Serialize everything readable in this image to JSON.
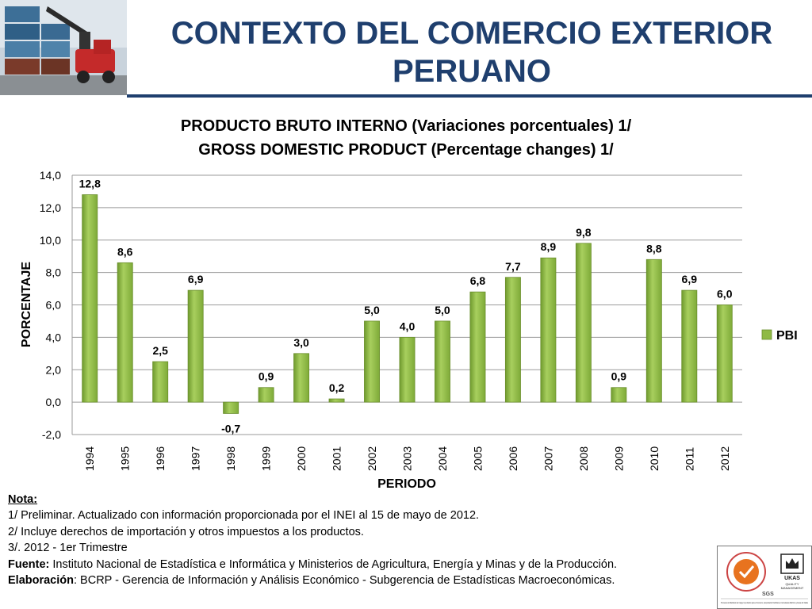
{
  "header": {
    "title_line1": "CONTEXTO DEL COMERCIO EXTERIOR",
    "title_line2": "PERUANO",
    "photo_icon": "container-crane-photo",
    "accent_color": "#1f3f6e"
  },
  "chart_data": {
    "type": "bar",
    "title_line1": "PRODUCTO BRUTO INTERNO (Variaciones porcentuales) 1/",
    "title_line2": "GROSS DOMESTIC PRODUCT (Percentage changes) 1/",
    "xlabel": "PERIODO",
    "ylabel": "PORCENTAJE",
    "categories": [
      "1994",
      "1995",
      "1996",
      "1997",
      "1998",
      "1999",
      "2000",
      "2001",
      "2002",
      "2003",
      "2004",
      "2005",
      "2006",
      "2007",
      "2008",
      "2009",
      "2010",
      "2011",
      "2012"
    ],
    "series": [
      {
        "name": "PBI",
        "values": [
          12.8,
          8.6,
          2.5,
          6.9,
          -0.7,
          0.9,
          3.0,
          0.2,
          5.0,
          4.0,
          5.0,
          6.8,
          7.7,
          8.9,
          9.8,
          0.9,
          8.8,
          6.9,
          6.0
        ],
        "labels": [
          "12,8",
          "8,6",
          "2,5",
          "6,9",
          "-0,7",
          "0,9",
          "3,0",
          "0,2",
          "5,0",
          "4,0",
          "5,0",
          "6,8",
          "7,7",
          "8,9",
          "9,8",
          "0,9",
          "8,8",
          "6,9",
          "6,0"
        ],
        "color": "#8fba45"
      }
    ],
    "ylim": [
      -2,
      14
    ],
    "yticks": [
      -2,
      0,
      2,
      4,
      6,
      8,
      10,
      12,
      14
    ],
    "ytick_labels": [
      "-2,0",
      "0,0",
      "2,0",
      "4,0",
      "6,0",
      "8,0",
      "10,0",
      "12,0",
      "14,0"
    ],
    "grid": true,
    "legend": "right"
  },
  "notes": {
    "heading": "Nota:",
    "line1": "1/ Preliminar. Actualizado con información proporcionada por el INEI al 15 de mayo de 2012.",
    "line2": "2/ Incluye derechos de importación y otros impuestos a los productos.",
    "line3": "3/. 2012 - 1er Trimestre",
    "source_label": "Fuente:",
    "source_text": " Instituto Nacional de Estadística e Informática y Ministerios de Agricultura, Energía y Minas y de la Producción.",
    "elab_label": "Elaboración",
    "elab_text": ": BCRP - Gerencia de Información y Análisis Económico - Subgerencia de Estadísticas Macroeconómicas."
  },
  "certification": {
    "sgs_text": "SGS",
    "ukas_line1": "UKAS",
    "ukas_line2": "QUALITY",
    "ukas_line3": "MANAGEMENT",
    "caption": "Procesos de Manifiesto de Carga, Importación para el Consumo y Exportación Definitiva en las Aduanas Marítima y Aérea del Callao"
  }
}
